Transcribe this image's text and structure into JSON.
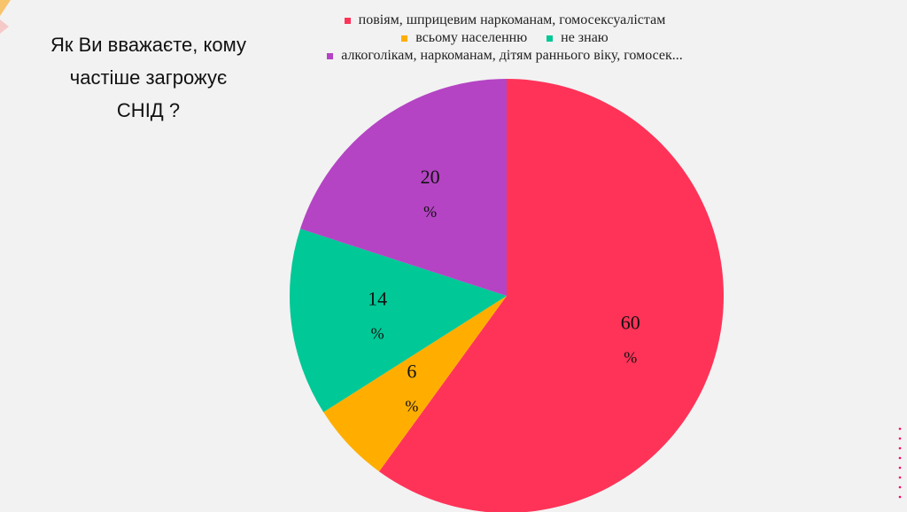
{
  "chart_data": {
    "type": "pie",
    "title": "Як Ви вважаєте, кому частіше загрожує СНІД ?",
    "categories": [
      "повіям, шприцевим наркоманам, гомосексуалістам",
      "всьому населенню",
      "не знаю",
      "алкоголікам, наркоманам, дітям раннього віку, гомосек..."
    ],
    "values": [
      60,
      6,
      14,
      20
    ],
    "value_labels": [
      "60%",
      "6%",
      "14%",
      "20%"
    ],
    "colors": [
      "#ff3358",
      "#ffae00",
      "#00c896",
      "#b444c4"
    ]
  }
}
